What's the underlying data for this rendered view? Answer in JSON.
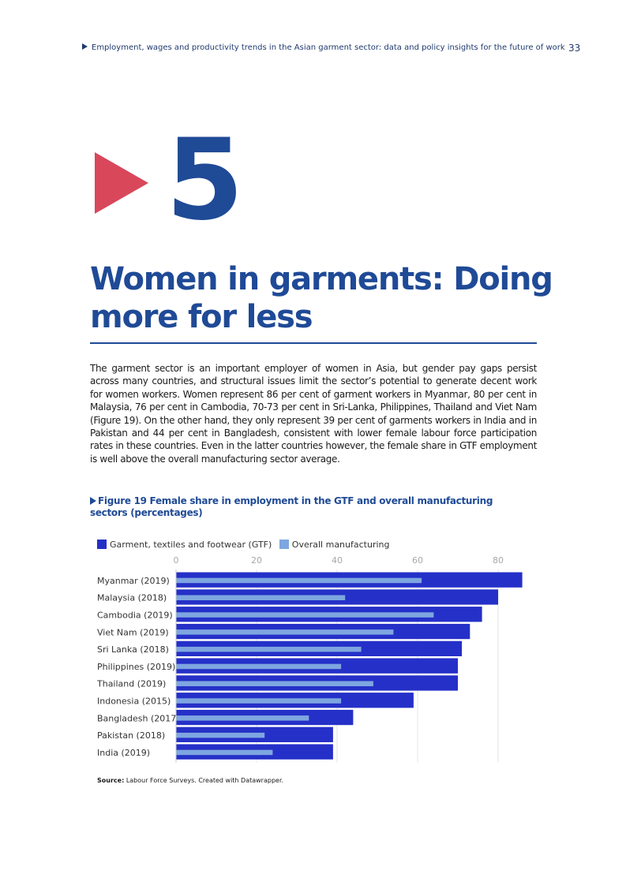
{
  "header": {
    "running_title": "Employment, wages and productivity trends in the Asian garment sector: data and policy insights for the future of work",
    "page_number": "33"
  },
  "chapter": {
    "number": "5",
    "title": "Women in garments: Doing more for less"
  },
  "body": {
    "paragraph": "The garment sector is an important employer of women in Asia, but gender pay gaps persist across many countries, and structural issues limit the sector’s potential to generate decent work for women workers. Women represent 86 per cent of garment workers in Myanmar, 80 per cent in Malaysia, 76 per cent in Cambodia, 70-73 per cent in Sri-Lanka, Philippines, Thailand and Viet Nam (Figure 19). On the other hand, they only represent 39 per cent of garments workers in India and in Pakistan and 44 per cent in Bangladesh, consistent with lower female labour force participation rates in these countries. Even in the latter countries however, the female share in GTF employment is well above the overall manufacturing sector average."
  },
  "figure": {
    "caption": "Figure 19 Female share in employment in the GTF and overall manufacturing sectors (percentages)",
    "source_label": "Source:",
    "source_text": "Labour Force Surveys. Created with Datawrapper."
  },
  "chart_data": {
    "type": "bar",
    "orientation": "horizontal",
    "categories": [
      "Myanmar (2019)",
      "Malaysia (2018)",
      "Cambodia (2019)",
      "Viet Nam (2019)",
      "Sri Lanka (2018)",
      "Philippines (2019)",
      "Thailand (2019)",
      "Indonesia (2015)",
      "Bangladesh (2017)",
      "Pakistan (2018)",
      "India (2019)"
    ],
    "series": [
      {
        "name": "Garment, textiles and footwear (GTF)",
        "color": "#2530c8",
        "values": [
          86,
          80,
          76,
          73,
          71,
          70,
          70,
          59,
          44,
          39,
          39
        ]
      },
      {
        "name": "Overall manufacturing",
        "color": "#7ea6e0",
        "values": [
          61,
          42,
          64,
          54,
          46,
          41,
          49,
          41,
          33,
          22,
          24
        ]
      }
    ],
    "xticks": [
      0,
      20,
      40,
      60,
      80
    ],
    "xlim": [
      0,
      90
    ],
    "grid": true,
    "legend_position": "top-left"
  }
}
